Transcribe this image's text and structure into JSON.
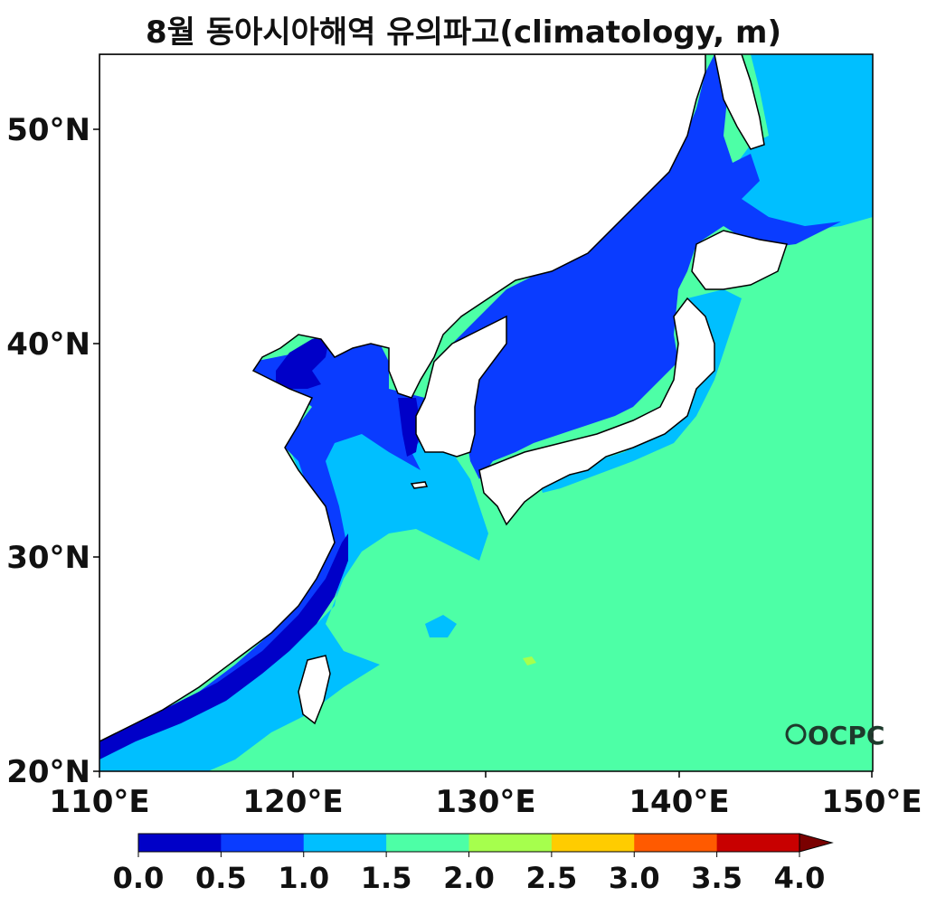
{
  "title": "8월 동아시아해역 유의파고(climatology, m)",
  "map": {
    "lon_range": [
      110,
      150
    ],
    "lat_range": [
      20,
      53.5
    ],
    "lon_ticks": [
      "110°E",
      "120°E",
      "130°E",
      "140°E",
      "150°E"
    ],
    "lat_ticks": [
      "20°N",
      "30°N",
      "40°N",
      "50°N"
    ],
    "logo_text": "OCPC",
    "land_color": "#ffffff",
    "coast_color": "#000000"
  },
  "colorbar": {
    "labels": [
      "0.0",
      "0.5",
      "1.0",
      "1.5",
      "2.0",
      "2.5",
      "3.0",
      "3.5",
      "4.0"
    ],
    "colors": [
      "#0000c8",
      "#0a3cff",
      "#00bfff",
      "#4dffa6",
      "#a6ff4d",
      "#ffcc00",
      "#ff5a00",
      "#c80000",
      "#7a0000"
    ],
    "extend": "max"
  }
}
